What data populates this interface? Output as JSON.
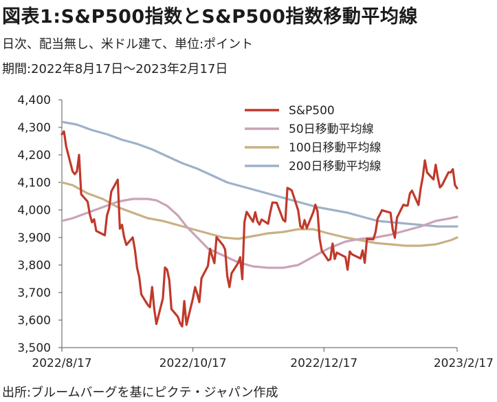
{
  "header": {
    "title": "図表1:S&P500指数とS&P500指数移動平均線",
    "subtitle1": "日次、配当無し、米ドル建て、単位:ポイント",
    "subtitle2": "期間:2022年8月17日～2023年2月17日"
  },
  "footer": {
    "source": "出所:ブルームバーグを基にピクテ・ジャパン作成"
  },
  "chart_data": {
    "type": "line",
    "title": "S&P500指数とS&P500指数移動平均線",
    "xlabel": "",
    "ylabel": "",
    "ylim": [
      3500,
      4400
    ],
    "yticks": [
      3500,
      3600,
      3700,
      3800,
      3900,
      4000,
      4100,
      4200,
      4300,
      4400
    ],
    "ytick_labels": [
      "3,500",
      "3,600",
      "3,700",
      "3,800",
      "3,900",
      "4,000",
      "4,100",
      "4,200",
      "4,300",
      "4,400"
    ],
    "xlim": [
      "2022-08-17",
      "2023-02-17"
    ],
    "xticks": [
      "2022-08-17",
      "2022-10-17",
      "2022-12-17",
      "2023-02-17"
    ],
    "xtick_labels": [
      "2022/8/17",
      "2022/10/17",
      "2022/12/17",
      "2023/2/17"
    ],
    "grid": false,
    "legend_position": "top-right",
    "series": [
      {
        "name": "S&P500",
        "color": "#c0392b",
        "points": [
          [
            "2022-08-17",
            4275
          ],
          [
            "2022-08-18",
            4285
          ],
          [
            "2022-08-19",
            4230
          ],
          [
            "2022-08-22",
            4140
          ],
          [
            "2022-08-23",
            4130
          ],
          [
            "2022-08-24",
            4140
          ],
          [
            "2022-08-25",
            4200
          ],
          [
            "2022-08-26",
            4057
          ],
          [
            "2022-08-29",
            4030
          ],
          [
            "2022-08-30",
            3985
          ],
          [
            "2022-08-31",
            3955
          ],
          [
            "2022-09-01",
            3966
          ],
          [
            "2022-09-02",
            3924
          ],
          [
            "2022-09-06",
            3908
          ],
          [
            "2022-09-07",
            3980
          ],
          [
            "2022-09-08",
            4006
          ],
          [
            "2022-09-09",
            4067
          ],
          [
            "2022-09-12",
            4110
          ],
          [
            "2022-09-13",
            3932
          ],
          [
            "2022-09-14",
            3946
          ],
          [
            "2022-09-15",
            3901
          ],
          [
            "2022-09-16",
            3873
          ],
          [
            "2022-09-19",
            3900
          ],
          [
            "2022-09-20",
            3855
          ],
          [
            "2022-09-21",
            3790
          ],
          [
            "2022-09-22",
            3757
          ],
          [
            "2022-09-23",
            3693
          ],
          [
            "2022-09-26",
            3655
          ],
          [
            "2022-09-27",
            3647
          ],
          [
            "2022-09-28",
            3720
          ],
          [
            "2022-09-29",
            3640
          ],
          [
            "2022-09-30",
            3586
          ],
          [
            "2022-10-03",
            3678
          ],
          [
            "2022-10-04",
            3791
          ],
          [
            "2022-10-05",
            3783
          ],
          [
            "2022-10-06",
            3745
          ],
          [
            "2022-10-07",
            3640
          ],
          [
            "2022-10-10",
            3612
          ],
          [
            "2022-10-11",
            3589
          ],
          [
            "2022-10-12",
            3577
          ],
          [
            "2022-10-13",
            3669
          ],
          [
            "2022-10-14",
            3583
          ],
          [
            "2022-10-17",
            3678
          ],
          [
            "2022-10-18",
            3720
          ],
          [
            "2022-10-19",
            3695
          ],
          [
            "2022-10-20",
            3665
          ],
          [
            "2022-10-21",
            3752
          ],
          [
            "2022-10-24",
            3797
          ],
          [
            "2022-10-25",
            3859
          ],
          [
            "2022-10-26",
            3831
          ],
          [
            "2022-10-27",
            3807
          ],
          [
            "2022-10-28",
            3901
          ],
          [
            "2022-10-31",
            3872
          ],
          [
            "2022-11-01",
            3856
          ],
          [
            "2022-11-02",
            3760
          ],
          [
            "2022-11-03",
            3720
          ],
          [
            "2022-11-04",
            3770
          ],
          [
            "2022-11-07",
            3807
          ],
          [
            "2022-11-08",
            3828
          ],
          [
            "2022-11-09",
            3749
          ],
          [
            "2022-11-10",
            3956
          ],
          [
            "2022-11-11",
            3993
          ],
          [
            "2022-11-14",
            3957
          ],
          [
            "2022-11-15",
            3992
          ],
          [
            "2022-11-16",
            3959
          ],
          [
            "2022-11-17",
            3947
          ],
          [
            "2022-11-18",
            3965
          ],
          [
            "2022-11-21",
            3950
          ],
          [
            "2022-11-22",
            3991
          ],
          [
            "2022-11-23",
            4027
          ],
          [
            "2022-11-25",
            4026
          ],
          [
            "2022-11-28",
            3964
          ],
          [
            "2022-11-29",
            3958
          ],
          [
            "2022-11-30",
            4080
          ],
          [
            "2022-12-01",
            4076
          ],
          [
            "2022-12-02",
            4071
          ],
          [
            "2022-12-05",
            3998
          ],
          [
            "2022-12-06",
            3941
          ],
          [
            "2022-12-07",
            3933
          ],
          [
            "2022-12-08",
            3963
          ],
          [
            "2022-12-09",
            3934
          ],
          [
            "2022-12-12",
            3991
          ],
          [
            "2022-12-13",
            4019
          ],
          [
            "2022-12-14",
            3995
          ],
          [
            "2022-12-15",
            3896
          ],
          [
            "2022-12-16",
            3852
          ],
          [
            "2022-12-19",
            3817
          ],
          [
            "2022-12-20",
            3821
          ],
          [
            "2022-12-21",
            3878
          ],
          [
            "2022-12-22",
            3822
          ],
          [
            "2022-12-23",
            3845
          ],
          [
            "2022-12-27",
            3829
          ],
          [
            "2022-12-28",
            3783
          ],
          [
            "2022-12-29",
            3849
          ],
          [
            "2022-12-30",
            3839
          ],
          [
            "2023-01-03",
            3824
          ],
          [
            "2023-01-04",
            3853
          ],
          [
            "2023-01-05",
            3808
          ],
          [
            "2023-01-06",
            3895
          ],
          [
            "2023-01-09",
            3893
          ],
          [
            "2023-01-10",
            3919
          ],
          [
            "2023-01-11",
            3969
          ],
          [
            "2023-01-12",
            3983
          ],
          [
            "2023-01-13",
            3999
          ],
          [
            "2023-01-17",
            3990
          ],
          [
            "2023-01-18",
            3929
          ],
          [
            "2023-01-19",
            3899
          ],
          [
            "2023-01-20",
            3972
          ],
          [
            "2023-01-23",
            4019
          ],
          [
            "2023-01-24",
            4016
          ],
          [
            "2023-01-25",
            4016
          ],
          [
            "2023-01-26",
            4060
          ],
          [
            "2023-01-27",
            4070
          ],
          [
            "2023-01-30",
            4018
          ],
          [
            "2023-01-31",
            4077
          ],
          [
            "2023-02-01",
            4119
          ],
          [
            "2023-02-02",
            4180
          ],
          [
            "2023-02-03",
            4136
          ],
          [
            "2023-02-06",
            4111
          ],
          [
            "2023-02-07",
            4164
          ],
          [
            "2023-02-08",
            4118
          ],
          [
            "2023-02-09",
            4082
          ],
          [
            "2023-02-10",
            4090
          ],
          [
            "2023-02-13",
            4137
          ],
          [
            "2023-02-14",
            4136
          ],
          [
            "2023-02-15",
            4148
          ],
          [
            "2023-02-16",
            4090
          ],
          [
            "2023-02-17",
            4079
          ]
        ]
      },
      {
        "name": "50日移動平均線",
        "color": "#c9a3b8",
        "points": [
          [
            "2022-08-17",
            3960
          ],
          [
            "2022-08-22",
            3970
          ],
          [
            "2022-08-29",
            3990
          ],
          [
            "2022-09-05",
            4010
          ],
          [
            "2022-09-12",
            4030
          ],
          [
            "2022-09-19",
            4040
          ],
          [
            "2022-09-26",
            4040
          ],
          [
            "2022-09-30",
            4035
          ],
          [
            "2022-10-05",
            4015
          ],
          [
            "2022-10-10",
            3980
          ],
          [
            "2022-10-14",
            3940
          ],
          [
            "2022-10-19",
            3900
          ],
          [
            "2022-10-24",
            3860
          ],
          [
            "2022-10-31",
            3835
          ],
          [
            "2022-11-07",
            3810
          ],
          [
            "2022-11-14",
            3795
          ],
          [
            "2022-11-21",
            3790
          ],
          [
            "2022-11-28",
            3790
          ],
          [
            "2022-12-05",
            3800
          ],
          [
            "2022-12-12",
            3830
          ],
          [
            "2022-12-19",
            3860
          ],
          [
            "2022-12-27",
            3885
          ],
          [
            "2023-01-03",
            3895
          ],
          [
            "2023-01-10",
            3900
          ],
          [
            "2023-01-17",
            3910
          ],
          [
            "2023-01-24",
            3925
          ],
          [
            "2023-01-31",
            3940
          ],
          [
            "2023-02-07",
            3960
          ],
          [
            "2023-02-14",
            3970
          ],
          [
            "2023-02-17",
            3975
          ]
        ]
      },
      {
        "name": "100日移動平均線",
        "color": "#c9b083",
        "points": [
          [
            "2022-08-17",
            4100
          ],
          [
            "2022-08-22",
            4090
          ],
          [
            "2022-08-29",
            4060
          ],
          [
            "2022-09-05",
            4040
          ],
          [
            "2022-09-12",
            4010
          ],
          [
            "2022-09-19",
            3990
          ],
          [
            "2022-09-26",
            3970
          ],
          [
            "2022-10-03",
            3960
          ],
          [
            "2022-10-10",
            3945
          ],
          [
            "2022-10-17",
            3930
          ],
          [
            "2022-10-24",
            3915
          ],
          [
            "2022-10-31",
            3900
          ],
          [
            "2022-11-07",
            3895
          ],
          [
            "2022-11-14",
            3905
          ],
          [
            "2022-11-21",
            3915
          ],
          [
            "2022-11-28",
            3920
          ],
          [
            "2022-12-05",
            3930
          ],
          [
            "2022-12-12",
            3930
          ],
          [
            "2022-12-19",
            3915
          ],
          [
            "2022-12-27",
            3900
          ],
          [
            "2023-01-03",
            3890
          ],
          [
            "2023-01-10",
            3880
          ],
          [
            "2023-01-17",
            3875
          ],
          [
            "2023-01-24",
            3870
          ],
          [
            "2023-01-31",
            3870
          ],
          [
            "2023-02-07",
            3875
          ],
          [
            "2023-02-14",
            3890
          ],
          [
            "2023-02-17",
            3900
          ]
        ]
      },
      {
        "name": "200日移動平均線",
        "color": "#9fb1c9",
        "points": [
          [
            "2022-08-17",
            4320
          ],
          [
            "2022-08-24",
            4310
          ],
          [
            "2022-08-31",
            4290
          ],
          [
            "2022-09-07",
            4275
          ],
          [
            "2022-09-14",
            4255
          ],
          [
            "2022-09-21",
            4240
          ],
          [
            "2022-09-28",
            4220
          ],
          [
            "2022-10-05",
            4195
          ],
          [
            "2022-10-12",
            4170
          ],
          [
            "2022-10-19",
            4150
          ],
          [
            "2022-10-26",
            4125
          ],
          [
            "2022-11-02",
            4100
          ],
          [
            "2022-11-09",
            4085
          ],
          [
            "2022-11-16",
            4070
          ],
          [
            "2022-11-23",
            4055
          ],
          [
            "2022-11-30",
            4040
          ],
          [
            "2022-12-07",
            4025
          ],
          [
            "2022-12-14",
            4010
          ],
          [
            "2022-12-21",
            4000
          ],
          [
            "2022-12-28",
            3990
          ],
          [
            "2023-01-04",
            3975
          ],
          [
            "2023-01-11",
            3960
          ],
          [
            "2023-01-18",
            3955
          ],
          [
            "2023-01-25",
            3950
          ],
          [
            "2023-02-01",
            3945
          ],
          [
            "2023-02-08",
            3940
          ],
          [
            "2023-02-17",
            3940
          ]
        ]
      }
    ]
  }
}
